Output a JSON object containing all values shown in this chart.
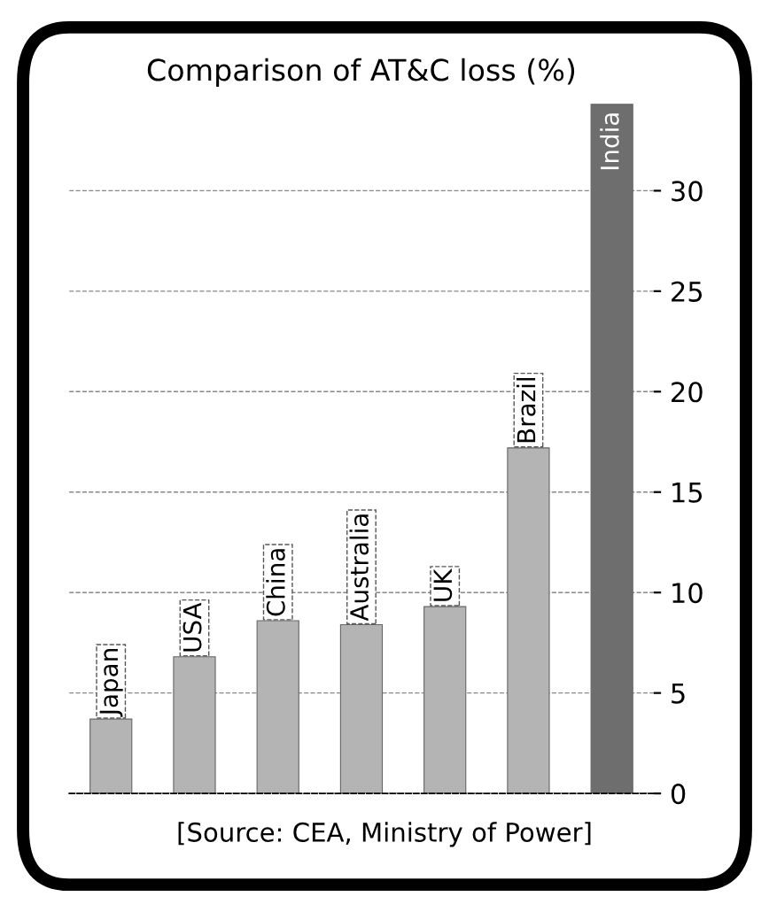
{
  "chart_data": {
    "type": "bar",
    "title": "Comparison of AT&C loss (%)",
    "categories": [
      "Japan",
      "USA",
      "China",
      "Australia",
      "UK",
      "Brazil",
      "India"
    ],
    "values": [
      3.7,
      6.8,
      8.6,
      8.4,
      9.3,
      17.2,
      34.3
    ],
    "colors": [
      "#b4b4b4",
      "#b4b4b4",
      "#b4b4b4",
      "#b4b4b4",
      "#b4b4b4",
      "#b4b4b4",
      "#6e6e6e"
    ],
    "ylim": [
      0,
      34.5
    ],
    "yticks": [
      0,
      5,
      10,
      15,
      20,
      25,
      30
    ],
    "grid": "y",
    "annotations": [
      "[Source: CEA, Ministry of Power]"
    ]
  }
}
